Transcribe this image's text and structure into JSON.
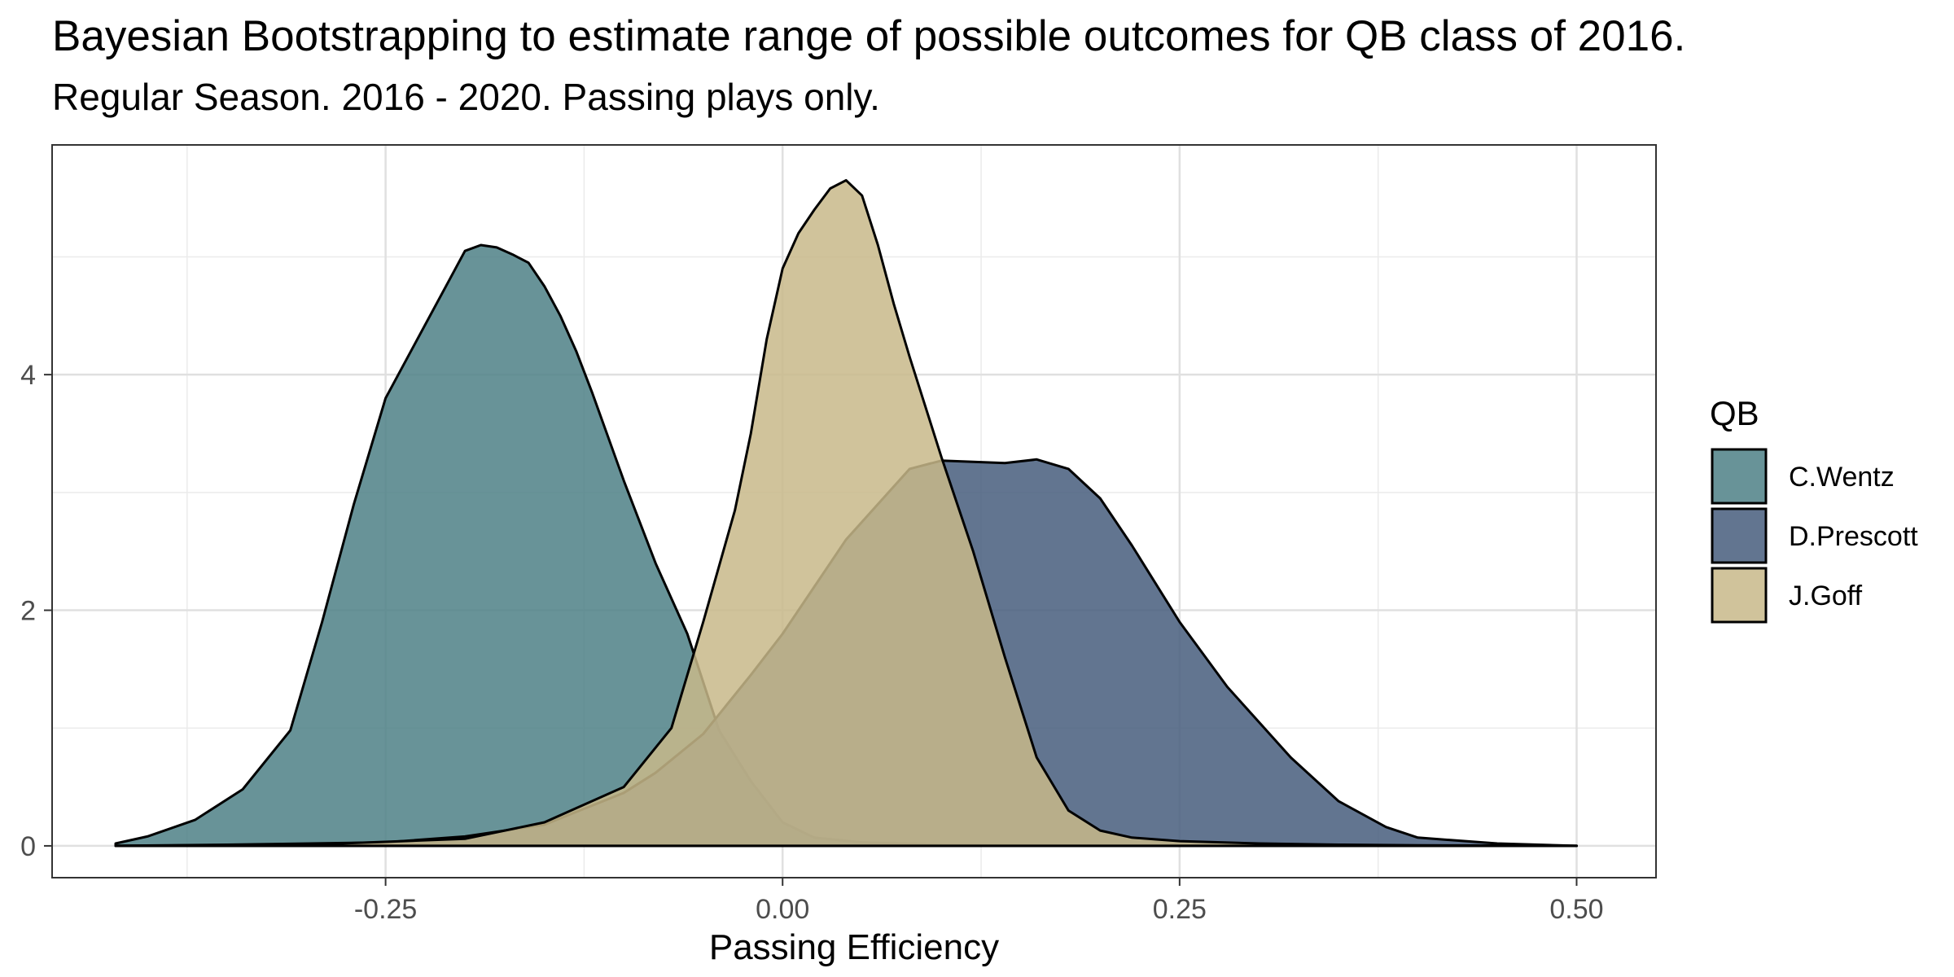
{
  "title": "Bayesian Bootstrapping to estimate range of possible outcomes for QB class of 2016.",
  "subtitle": "Regular Season. 2016 - 2020. Passing plays only.",
  "chart_data": {
    "type": "area",
    "xlabel": "Passing Efficiency",
    "ylabel": "",
    "xlim": [
      -0.46,
      0.55
    ],
    "ylim": [
      -0.27,
      5.95
    ],
    "x_ticks": [
      -0.25,
      0.0,
      0.25,
      0.5
    ],
    "x_tick_labels": [
      "-0.25",
      "0.00",
      "0.25",
      "0.50"
    ],
    "y_ticks": [
      0,
      2,
      4
    ],
    "y_tick_labels": [
      "0",
      "2",
      "4"
    ],
    "grid": true,
    "legend_title": "QB",
    "legend_position": "right",
    "series": [
      {
        "name": "C.Wentz",
        "color": "#4d8086",
        "x": [
          -0.42,
          -0.4,
          -0.37,
          -0.34,
          -0.31,
          -0.29,
          -0.27,
          -0.25,
          -0.23,
          -0.21,
          -0.2,
          -0.19,
          -0.18,
          -0.17,
          -0.16,
          -0.15,
          -0.14,
          -0.13,
          -0.12,
          -0.1,
          -0.08,
          -0.06,
          -0.04,
          -0.02,
          0.0,
          0.02,
          0.05,
          0.1,
          0.15,
          0.2,
          0.3,
          0.4,
          0.5
        ],
        "y": [
          0.02,
          0.08,
          0.22,
          0.48,
          0.98,
          1.9,
          2.9,
          3.8,
          4.3,
          4.8,
          5.05,
          5.1,
          5.08,
          5.02,
          4.95,
          4.75,
          4.5,
          4.2,
          3.85,
          3.1,
          2.4,
          1.8,
          0.98,
          0.55,
          0.2,
          0.07,
          0.03,
          0.01,
          0.005,
          0.003,
          0.002,
          0.001,
          0.0
        ]
      },
      {
        "name": "D.Prescott",
        "color": "#465d7d",
        "x": [
          -0.42,
          -0.35,
          -0.25,
          -0.2,
          -0.15,
          -0.1,
          -0.08,
          -0.05,
          -0.02,
          0.0,
          0.02,
          0.04,
          0.06,
          0.08,
          0.1,
          0.12,
          0.14,
          0.16,
          0.18,
          0.2,
          0.22,
          0.25,
          0.28,
          0.3,
          0.32,
          0.35,
          0.38,
          0.4,
          0.45,
          0.5
        ],
        "y": [
          0.0,
          0.01,
          0.03,
          0.08,
          0.18,
          0.45,
          0.62,
          0.95,
          1.45,
          1.8,
          2.2,
          2.6,
          2.9,
          3.2,
          3.27,
          3.26,
          3.25,
          3.28,
          3.2,
          2.95,
          2.55,
          1.9,
          1.35,
          1.05,
          0.75,
          0.38,
          0.16,
          0.07,
          0.02,
          0.0
        ]
      },
      {
        "name": "J.Goff",
        "color": "#c8b88a",
        "x": [
          -0.42,
          -0.3,
          -0.2,
          -0.15,
          -0.1,
          -0.07,
          -0.05,
          -0.03,
          -0.02,
          -0.01,
          0.0,
          0.01,
          0.02,
          0.03,
          0.04,
          0.05,
          0.06,
          0.07,
          0.08,
          0.1,
          0.12,
          0.14,
          0.16,
          0.18,
          0.2,
          0.22,
          0.25,
          0.3,
          0.35,
          0.4,
          0.5
        ],
        "y": [
          0.0,
          0.01,
          0.06,
          0.2,
          0.5,
          1.0,
          1.9,
          2.85,
          3.5,
          4.3,
          4.9,
          5.2,
          5.4,
          5.58,
          5.65,
          5.52,
          5.1,
          4.6,
          4.15,
          3.3,
          2.5,
          1.6,
          0.75,
          0.3,
          0.13,
          0.07,
          0.04,
          0.02,
          0.01,
          0.005,
          0.0
        ]
      }
    ]
  }
}
